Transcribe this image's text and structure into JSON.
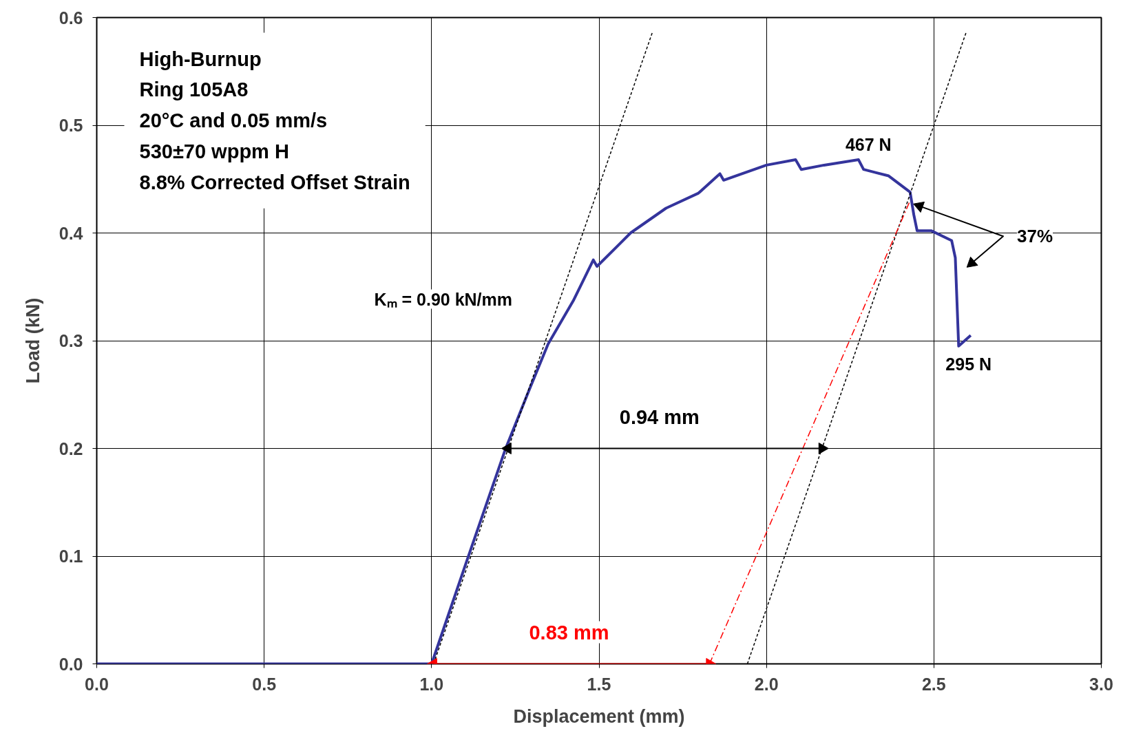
{
  "chart_data": {
    "type": "line",
    "xlabel": "Displacement (mm)",
    "ylabel": "Load (kN)",
    "xlim": [
      0,
      3
    ],
    "ylim": [
      0,
      0.6
    ],
    "xticks": [
      {
        "value": 0,
        "label": "0.0"
      },
      0.5,
      {
        "value": 1,
        "label": "1.0"
      },
      1.5,
      {
        "value": 2,
        "label": "2.0"
      },
      2.5,
      {
        "value": 3,
        "label": "3.0"
      }
    ],
    "yticks": [
      {
        "value": 0,
        "label": "0.0"
      },
      0.1,
      0.2,
      0.3,
      0.4,
      0.5,
      0.6
    ],
    "grid": true,
    "series": [
      {
        "color": "#34349c",
        "line_style": "solid",
        "x": [
          0,
          1.0,
          1.1,
          1.22,
          1.295,
          1.348,
          1.423,
          1.483,
          1.494,
          1.562,
          1.594,
          1.7,
          1.797,
          1.861,
          1.872,
          2.0,
          2.087,
          2.104,
          2.172,
          2.275,
          2.29,
          2.365,
          2.429,
          2.44,
          2.45,
          2.493,
          2.553,
          2.564,
          2.574,
          2.61
        ],
        "values": [
          0,
          0,
          0.091,
          0.199,
          0.257,
          0.297,
          0.337,
          0.375,
          0.369,
          0.39,
          0.4,
          0.423,
          0.437,
          0.455,
          0.449,
          0.463,
          0.468,
          0.459,
          0.463,
          0.468,
          0.459,
          0.453,
          0.438,
          0.417,
          0.402,
          0.402,
          0.393,
          0.377,
          0.295,
          0.305
        ]
      },
      {
        "color": "#000000",
        "line_style": "dashed",
        "x": [
          1.006,
          1.659
        ],
        "values": [
          0,
          0.586
        ]
      },
      {
        "color": "#000000",
        "line_style": "dashed",
        "x": [
          1.943,
          2.596
        ],
        "values": [
          0,
          0.586
        ]
      },
      {
        "color": "#ff0000",
        "line_style": "dashdot",
        "x": [
          1.83,
          2.429
        ],
        "values": [
          0,
          0.43
        ]
      },
      {
        "color": "#000000",
        "line_style": "solid",
        "marker": "triangle",
        "x": [
          1.228,
          2.166
        ],
        "values": [
          0.2,
          0.2
        ]
      },
      {
        "color": "#ff0000",
        "line_style": "solid",
        "marker": "triangle",
        "x": [
          1.006,
          1.83
        ],
        "values": [
          0,
          0
        ]
      },
      {
        "color": "#000000",
        "line_style": "solid",
        "marker": "triangle",
        "x": [
          2.457,
          2.707,
          2.613
        ],
        "values": [
          0.425,
          0.397,
          0.372
        ]
      }
    ],
    "annotations": [
      "High-Burnup",
      "Ring 105A8",
      "20°C and 0.05 mm/s",
      "530±70 wppm H",
      "8.8% Corrected Offset Strain",
      "Kₘ = 0.90 kN/mm",
      {
        "text": "0.94 mm",
        "x": 1.69,
        "y": 0.2
      },
      {
        "text": "0.83 mm",
        "x": 1.42,
        "y": 0
      },
      {
        "text": "467 N",
        "x": 2.275,
        "y": 0.468
      },
      {
        "text": "295 N",
        "x": 2.574,
        "y": 0.295
      },
      {
        "text": "37%",
        "x": 2.707,
        "y": 0.397
      }
    ]
  }
}
